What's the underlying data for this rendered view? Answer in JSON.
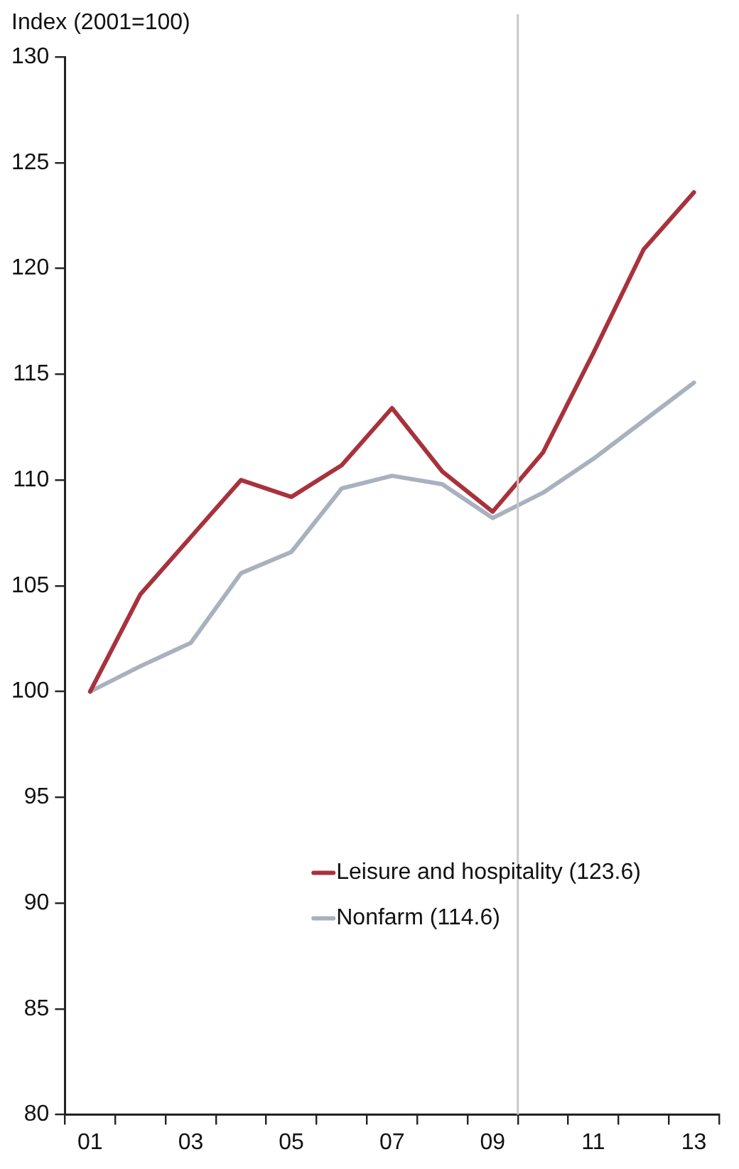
{
  "chart_data": {
    "type": "line",
    "ylabel": "Index (2001=100)",
    "x": [
      2001,
      2002,
      2003,
      2004,
      2005,
      2006,
      2007,
      2008,
      2009,
      2010,
      2011,
      2012,
      2013
    ],
    "series": [
      {
        "name": "Leisure and hospitality (123.6)",
        "color": "#a8323c",
        "values": [
          100,
          104.6,
          107.3,
          110,
          109.2,
          110.7,
          113.4,
          110.4,
          108.5,
          111.3,
          116,
          120.9,
          123.6
        ]
      },
      {
        "name": "Nonfarm (114.6)",
        "color": "#a9b1bf",
        "values": [
          100,
          101.2,
          102.3,
          105.6,
          106.6,
          109.6,
          110.2,
          109.8,
          108.2,
          109.4,
          111,
          112.8,
          114.6
        ]
      }
    ],
    "xlim": [
      2000.5,
      2013.5
    ],
    "xticks": [
      {
        "value": 2000.5,
        "label": null
      },
      {
        "value": 2001,
        "label": "01"
      },
      {
        "value": 2001.5,
        "label": null
      },
      {
        "value": 2002.5,
        "label": null
      },
      {
        "value": 2003,
        "label": "03"
      },
      {
        "value": 2003.5,
        "label": null
      },
      {
        "value": 2004.5,
        "label": null
      },
      {
        "value": 2005,
        "label": "05"
      },
      {
        "value": 2005.5,
        "label": null
      },
      {
        "value": 2006.5,
        "label": null
      },
      {
        "value": 2007,
        "label": "07"
      },
      {
        "value": 2007.5,
        "label": null
      },
      {
        "value": 2008.5,
        "label": null
      },
      {
        "value": 2009,
        "label": "09"
      },
      {
        "value": 2009.5,
        "label": null
      },
      {
        "value": 2010.5,
        "label": null
      },
      {
        "value": 2011,
        "label": "11"
      },
      {
        "value": 2011.5,
        "label": null
      },
      {
        "value": 2012.5,
        "label": null
      },
      {
        "value": 2013,
        "label": "13"
      },
      {
        "value": 2013.5,
        "label": null
      }
    ],
    "ylim": [
      80,
      130
    ],
    "yticks": [
      80,
      85,
      90,
      95,
      100,
      105,
      110,
      115,
      120,
      125,
      130
    ],
    "ref_lines": [
      {
        "axis": "x",
        "value": 2009.5,
        "color": "#c8c8c8"
      }
    ],
    "legend": "bottom right",
    "marker": "none",
    "line_style": "solid"
  }
}
